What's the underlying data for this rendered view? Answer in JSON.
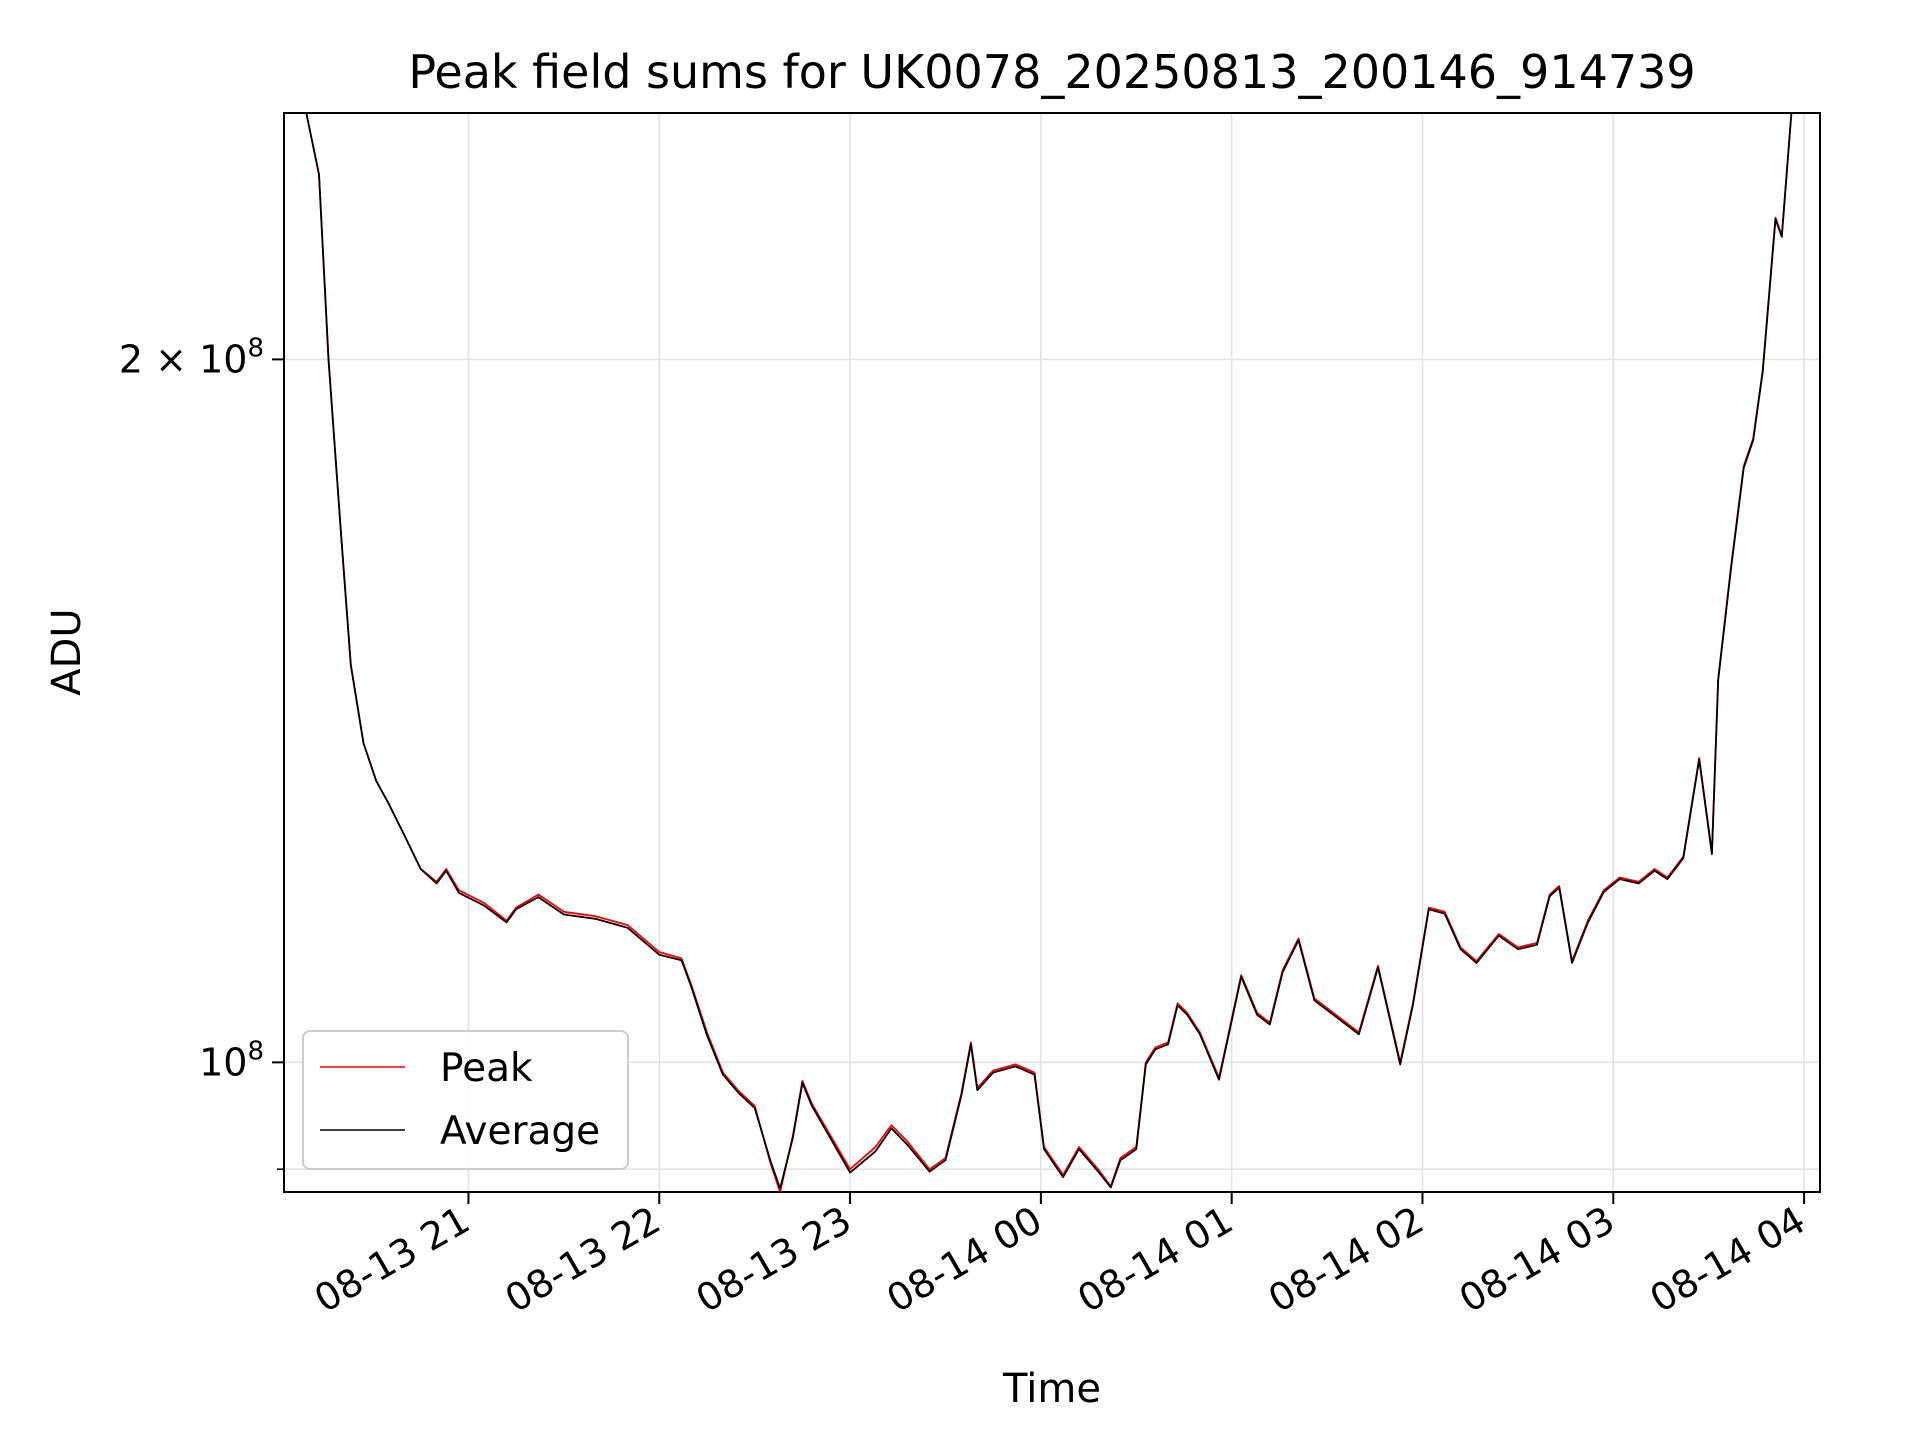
{
  "chart_data": {
    "type": "line",
    "title": "Peak field sums for UK0078_20250813_200146_914739",
    "xlabel": "Time",
    "ylabel": "ADU",
    "x_scale": "time",
    "y_scale": "log",
    "xlim": [
      "2025-08-13 20:02",
      "2025-08-14 04:05"
    ],
    "ylim": [
      88000000,
      255000000
    ],
    "x_ticks": [
      "2025-08-13 21:00",
      "2025-08-13 22:00",
      "2025-08-13 23:00",
      "2025-08-14 00:00",
      "2025-08-14 01:00",
      "2025-08-14 02:00",
      "2025-08-14 03:00",
      "2025-08-14 04:00"
    ],
    "x_tick_labels": [
      "08-13 21",
      "08-13 22",
      "08-13 23",
      "08-14 00",
      "08-14 01",
      "08-14 02",
      "08-14 03",
      "08-14 04"
    ],
    "y_ticks": [
      100000000,
      200000000
    ],
    "y_tick_labels": [
      {
        "mantissa": "",
        "base": "10",
        "exp": "8"
      },
      {
        "mantissa": "2 × ",
        "base": "10",
        "exp": "8"
      }
    ],
    "grid": true,
    "legend_position": "lower-left",
    "series": [
      {
        "name": "Peak",
        "color": "#ff0000",
        "points": [
          [
            "2025-08-13 20:02",
            255000000
          ],
          [
            "2025-08-13 20:09",
            255000000
          ],
          [
            "2025-08-13 20:13",
            240000000
          ],
          [
            "2025-08-13 20:16",
            200000000
          ],
          [
            "2025-08-13 20:20",
            168000000
          ],
          [
            "2025-08-13 20:23",
            148000000
          ],
          [
            "2025-08-13 20:27",
            137000000
          ],
          [
            "2025-08-13 20:31",
            132000000
          ],
          [
            "2025-08-13 20:35",
            129000000
          ],
          [
            "2025-08-13 20:40",
            125000000
          ],
          [
            "2025-08-13 20:45",
            121000000
          ],
          [
            "2025-08-13 20:50",
            119500000
          ],
          [
            "2025-08-13 20:53",
            121000000
          ],
          [
            "2025-08-13 20:57",
            118500000
          ],
          [
            "2025-08-13 21:05",
            117000000
          ],
          [
            "2025-08-13 21:12",
            115000000
          ],
          [
            "2025-08-13 21:15",
            116500000
          ],
          [
            "2025-08-13 21:22",
            118000000
          ],
          [
            "2025-08-13 21:30",
            116000000
          ],
          [
            "2025-08-13 21:40",
            115500000
          ],
          [
            "2025-08-13 21:50",
            114500000
          ],
          [
            "2025-08-13 22:00",
            111500000
          ],
          [
            "2025-08-13 22:07",
            110800000
          ],
          [
            "2025-08-13 22:10",
            108000000
          ],
          [
            "2025-08-13 22:15",
            103000000
          ],
          [
            "2025-08-13 22:20",
            99000000
          ],
          [
            "2025-08-13 22:25",
            97200000
          ],
          [
            "2025-08-13 22:30",
            95800000
          ],
          [
            "2025-08-13 22:35",
            90500000
          ],
          [
            "2025-08-13 22:38",
            88000000
          ],
          [
            "2025-08-13 22:42",
            93000000
          ],
          [
            "2025-08-13 22:45",
            98200000
          ],
          [
            "2025-08-13 22:48",
            96000000
          ],
          [
            "2025-08-13 23:00",
            90000000
          ],
          [
            "2025-08-13 23:08",
            92000000
          ],
          [
            "2025-08-13 23:13",
            94000000
          ],
          [
            "2025-08-13 23:18",
            92500000
          ],
          [
            "2025-08-13 23:25",
            90000000
          ],
          [
            "2025-08-13 23:30",
            91000000
          ],
          [
            "2025-08-13 23:35",
            97000000
          ],
          [
            "2025-08-13 23:38",
            102000000
          ],
          [
            "2025-08-13 23:40",
            97500000
          ],
          [
            "2025-08-13 23:45",
            99200000
          ],
          [
            "2025-08-13 23:52",
            99800000
          ],
          [
            "2025-08-13 23:58",
            99000000
          ],
          [
            "2025-08-14 00:01",
            92000000
          ],
          [
            "2025-08-14 00:07",
            89500000
          ],
          [
            "2025-08-14 00:12",
            92000000
          ],
          [
            "2025-08-14 00:18",
            90000000
          ],
          [
            "2025-08-14 00:22",
            88500000
          ],
          [
            "2025-08-14 00:25",
            91000000
          ],
          [
            "2025-08-14 00:30",
            92000000
          ],
          [
            "2025-08-14 00:33",
            100000000
          ],
          [
            "2025-08-14 00:36",
            101500000
          ],
          [
            "2025-08-14 00:40",
            102000000
          ],
          [
            "2025-08-14 00:43",
            106000000
          ],
          [
            "2025-08-14 00:46",
            105000000
          ],
          [
            "2025-08-14 00:50",
            103000000
          ],
          [
            "2025-08-14 00:56",
            98500000
          ],
          [
            "2025-08-14 01:03",
            109000000
          ],
          [
            "2025-08-14 01:08",
            105000000
          ],
          [
            "2025-08-14 01:12",
            104000000
          ],
          [
            "2025-08-14 01:16",
            109500000
          ],
          [
            "2025-08-14 01:21",
            113000000
          ],
          [
            "2025-08-14 01:26",
            106500000
          ],
          [
            "2025-08-14 01:32",
            105000000
          ],
          [
            "2025-08-14 01:40",
            103000000
          ],
          [
            "2025-08-14 01:46",
            110000000
          ],
          [
            "2025-08-14 01:53",
            100000000
          ],
          [
            "2025-08-14 01:57",
            106000000
          ],
          [
            "2025-08-14 02:02",
            116500000
          ],
          [
            "2025-08-14 02:07",
            116000000
          ],
          [
            "2025-08-14 02:12",
            112000000
          ],
          [
            "2025-08-14 02:17",
            110500000
          ],
          [
            "2025-08-14 02:24",
            113500000
          ],
          [
            "2025-08-14 02:30",
            112000000
          ],
          [
            "2025-08-14 02:36",
            112500000
          ],
          [
            "2025-08-14 02:40",
            118000000
          ],
          [
            "2025-08-14 02:43",
            119000000
          ],
          [
            "2025-08-14 02:47",
            110500000
          ],
          [
            "2025-08-14 02:52",
            115000000
          ],
          [
            "2025-08-14 02:57",
            118500000
          ],
          [
            "2025-08-14 03:02",
            120000000
          ],
          [
            "2025-08-14 03:08",
            119500000
          ],
          [
            "2025-08-14 03:13",
            121000000
          ],
          [
            "2025-08-14 03:17",
            120000000
          ],
          [
            "2025-08-14 03:22",
            122500000
          ],
          [
            "2025-08-14 03:27",
            135000000
          ],
          [
            "2025-08-14 03:31",
            123000000
          ],
          [
            "2025-08-14 03:33",
            146000000
          ],
          [
            "2025-08-14 03:37",
            163000000
          ],
          [
            "2025-08-14 03:41",
            180000000
          ],
          [
            "2025-08-14 03:44",
            185000000
          ],
          [
            "2025-08-14 03:47",
            198000000
          ],
          [
            "2025-08-14 03:51",
            230000000
          ],
          [
            "2025-08-14 03:53",
            226000000
          ],
          [
            "2025-08-14 03:56",
            255000000
          ]
        ]
      },
      {
        "name": "Average",
        "color": "#000000",
        "points": [
          [
            "2025-08-13 20:02",
            255000000
          ],
          [
            "2025-08-13 20:09",
            255000000
          ],
          [
            "2025-08-13 20:13",
            240000000
          ],
          [
            "2025-08-13 20:16",
            200000000
          ],
          [
            "2025-08-13 20:20",
            168000000
          ],
          [
            "2025-08-13 20:23",
            148000000
          ],
          [
            "2025-08-13 20:27",
            137000000
          ],
          [
            "2025-08-13 20:31",
            132000000
          ],
          [
            "2025-08-13 20:35",
            129000000
          ],
          [
            "2025-08-13 20:40",
            125000000
          ],
          [
            "2025-08-13 20:45",
            121000000
          ],
          [
            "2025-08-13 20:50",
            119300000
          ],
          [
            "2025-08-13 20:53",
            120800000
          ],
          [
            "2025-08-13 20:57",
            118200000
          ],
          [
            "2025-08-13 21:05",
            116700000
          ],
          [
            "2025-08-13 21:12",
            114800000
          ],
          [
            "2025-08-13 21:15",
            116300000
          ],
          [
            "2025-08-13 21:22",
            117700000
          ],
          [
            "2025-08-13 21:30",
            115700000
          ],
          [
            "2025-08-13 21:40",
            115200000
          ],
          [
            "2025-08-13 21:50",
            114200000
          ],
          [
            "2025-08-13 22:00",
            111200000
          ],
          [
            "2025-08-13 22:07",
            110600000
          ],
          [
            "2025-08-13 22:10",
            107800000
          ],
          [
            "2025-08-13 22:15",
            102700000
          ],
          [
            "2025-08-13 22:20",
            98800000
          ],
          [
            "2025-08-13 22:25",
            97000000
          ],
          [
            "2025-08-13 22:30",
            95600000
          ],
          [
            "2025-08-13 22:35",
            90700000
          ],
          [
            "2025-08-13 22:38",
            88300000
          ],
          [
            "2025-08-13 22:42",
            92800000
          ],
          [
            "2025-08-13 22:45",
            98000000
          ],
          [
            "2025-08-13 22:48",
            95800000
          ],
          [
            "2025-08-13 23:00",
            89700000
          ],
          [
            "2025-08-13 23:08",
            91600000
          ],
          [
            "2025-08-13 23:13",
            93700000
          ],
          [
            "2025-08-13 23:18",
            92200000
          ],
          [
            "2025-08-13 23:25",
            89800000
          ],
          [
            "2025-08-13 23:30",
            90800000
          ],
          [
            "2025-08-13 23:35",
            96800000
          ],
          [
            "2025-08-13 23:38",
            101800000
          ],
          [
            "2025-08-13 23:40",
            97300000
          ],
          [
            "2025-08-13 23:45",
            99000000
          ],
          [
            "2025-08-13 23:52",
            99600000
          ],
          [
            "2025-08-13 23:58",
            98800000
          ],
          [
            "2025-08-14 00:01",
            91800000
          ],
          [
            "2025-08-14 00:07",
            89300000
          ],
          [
            "2025-08-14 00:12",
            91800000
          ],
          [
            "2025-08-14 00:18",
            89800000
          ],
          [
            "2025-08-14 00:22",
            88400000
          ],
          [
            "2025-08-14 00:25",
            90800000
          ],
          [
            "2025-08-14 00:30",
            91800000
          ],
          [
            "2025-08-14 00:33",
            99800000
          ],
          [
            "2025-08-14 00:36",
            101300000
          ],
          [
            "2025-08-14 00:40",
            101800000
          ],
          [
            "2025-08-14 00:43",
            105800000
          ],
          [
            "2025-08-14 00:46",
            104800000
          ],
          [
            "2025-08-14 00:50",
            102800000
          ],
          [
            "2025-08-14 00:56",
            98300000
          ],
          [
            "2025-08-14 01:03",
            108800000
          ],
          [
            "2025-08-14 01:08",
            104800000
          ],
          [
            "2025-08-14 01:12",
            103800000
          ],
          [
            "2025-08-14 01:16",
            109300000
          ],
          [
            "2025-08-14 01:21",
            112800000
          ],
          [
            "2025-08-14 01:26",
            106300000
          ],
          [
            "2025-08-14 01:32",
            104800000
          ],
          [
            "2025-08-14 01:40",
            102800000
          ],
          [
            "2025-08-14 01:46",
            109800000
          ],
          [
            "2025-08-14 01:53",
            99800000
          ],
          [
            "2025-08-14 01:57",
            105800000
          ],
          [
            "2025-08-14 02:02",
            116300000
          ],
          [
            "2025-08-14 02:07",
            115800000
          ],
          [
            "2025-08-14 02:12",
            111800000
          ],
          [
            "2025-08-14 02:17",
            110300000
          ],
          [
            "2025-08-14 02:24",
            113300000
          ],
          [
            "2025-08-14 02:30",
            111800000
          ],
          [
            "2025-08-14 02:36",
            112300000
          ],
          [
            "2025-08-14 02:40",
            117800000
          ],
          [
            "2025-08-14 02:43",
            118800000
          ],
          [
            "2025-08-14 02:47",
            110300000
          ],
          [
            "2025-08-14 02:52",
            114800000
          ],
          [
            "2025-08-14 02:57",
            118300000
          ],
          [
            "2025-08-14 03:02",
            119800000
          ],
          [
            "2025-08-14 03:08",
            119300000
          ],
          [
            "2025-08-14 03:13",
            120800000
          ],
          [
            "2025-08-14 03:17",
            119800000
          ],
          [
            "2025-08-14 03:22",
            122300000
          ],
          [
            "2025-08-14 03:27",
            134800000
          ],
          [
            "2025-08-14 03:31",
            122800000
          ],
          [
            "2025-08-14 03:33",
            145800000
          ],
          [
            "2025-08-14 03:37",
            162700000
          ],
          [
            "2025-08-14 03:41",
            179700000
          ],
          [
            "2025-08-14 03:44",
            184700000
          ],
          [
            "2025-08-14 03:47",
            197700000
          ],
          [
            "2025-08-14 03:51",
            229700000
          ],
          [
            "2025-08-14 03:53",
            225700000
          ],
          [
            "2025-08-14 03:56",
            255000000
          ]
        ]
      }
    ]
  }
}
